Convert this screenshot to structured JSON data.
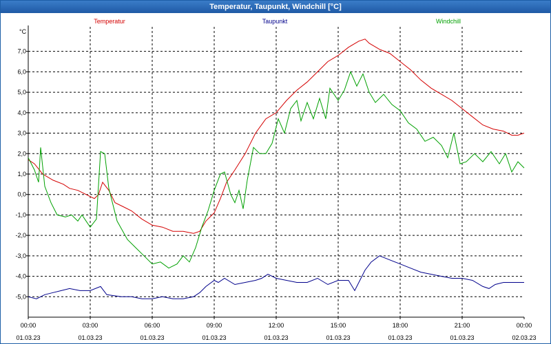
{
  "window": {
    "title": "Temperatur, Taupunkt, Windchill [°C]"
  },
  "chart_data": {
    "type": "line",
    "title": "Temperatur, Taupunkt, Windchill [°C]",
    "ylabel": "°C",
    "xlabel": "",
    "ylim": [
      -6,
      8.2
    ],
    "xlim": [
      0,
      24
    ],
    "grid": true,
    "legend_position": "top",
    "y_ticks": [
      -5,
      -4,
      -3,
      -2,
      -1,
      0,
      1,
      2,
      3,
      4,
      5,
      6,
      7
    ],
    "y_tick_labels": [
      "-5,0",
      "-4,0",
      "-3,0",
      "-2,0",
      "-1,0",
      "0,0",
      "1,0",
      "2,0",
      "3,0",
      "4,0",
      "5,0",
      "6,0",
      "7,0"
    ],
    "x_ticks": [
      {
        "h": 0,
        "time": "00:00",
        "date": "01.03.23"
      },
      {
        "h": 3,
        "time": "03:00",
        "date": "01.03.23"
      },
      {
        "h": 6,
        "time": "06:00",
        "date": "01.03.23"
      },
      {
        "h": 9,
        "time": "09:00",
        "date": "01.03.23"
      },
      {
        "h": 12,
        "time": "12:00",
        "date": "01.03.23"
      },
      {
        "h": 15,
        "time": "15:00",
        "date": "01.03.23"
      },
      {
        "h": 18,
        "time": "18:00",
        "date": "01.03.23"
      },
      {
        "h": 21,
        "time": "21:00",
        "date": "01.03.23"
      },
      {
        "h": 24,
        "time": "00:00",
        "date": "02.03.23"
      }
    ],
    "series": [
      {
        "name": "Temperatur",
        "color": "#d40000",
        "points": [
          [
            0,
            1.7
          ],
          [
            0.3,
            1.5
          ],
          [
            0.7,
            1.0
          ],
          [
            1.2,
            0.7
          ],
          [
            1.7,
            0.5
          ],
          [
            2.0,
            0.3
          ],
          [
            2.4,
            0.2
          ],
          [
            2.8,
            0.0
          ],
          [
            3.0,
            -0.1
          ],
          [
            3.2,
            -0.2
          ],
          [
            3.4,
            0.0
          ],
          [
            3.6,
            0.6
          ],
          [
            3.9,
            0.2
          ],
          [
            4.2,
            -0.4
          ],
          [
            4.6,
            -0.6
          ],
          [
            5.0,
            -0.8
          ],
          [
            5.5,
            -1.2
          ],
          [
            6.0,
            -1.5
          ],
          [
            6.5,
            -1.6
          ],
          [
            7.0,
            -1.8
          ],
          [
            7.5,
            -1.8
          ],
          [
            8.0,
            -1.9
          ],
          [
            8.3,
            -1.8
          ],
          [
            8.6,
            -1.3
          ],
          [
            9.0,
            -0.9
          ],
          [
            9.3,
            -0.2
          ],
          [
            9.6,
            0.6
          ],
          [
            10.0,
            1.2
          ],
          [
            10.5,
            2.0
          ],
          [
            11.0,
            3.0
          ],
          [
            11.5,
            3.7
          ],
          [
            12.0,
            4.0
          ],
          [
            12.5,
            4.6
          ],
          [
            13.0,
            5.1
          ],
          [
            13.5,
            5.5
          ],
          [
            14.0,
            6.0
          ],
          [
            14.5,
            6.5
          ],
          [
            15.0,
            6.8
          ],
          [
            15.5,
            7.2
          ],
          [
            16.0,
            7.5
          ],
          [
            16.3,
            7.6
          ],
          [
            16.5,
            7.4
          ],
          [
            17.0,
            7.1
          ],
          [
            17.5,
            6.9
          ],
          [
            18.0,
            6.5
          ],
          [
            18.5,
            6.1
          ],
          [
            19.0,
            5.6
          ],
          [
            19.5,
            5.2
          ],
          [
            20.0,
            4.9
          ],
          [
            20.5,
            4.6
          ],
          [
            21.0,
            4.2
          ],
          [
            21.5,
            3.8
          ],
          [
            22.0,
            3.4
          ],
          [
            22.5,
            3.2
          ],
          [
            23.0,
            3.1
          ],
          [
            23.4,
            2.9
          ],
          [
            23.7,
            2.9
          ],
          [
            24,
            3.0
          ]
        ]
      },
      {
        "name": "Taupunkt",
        "color": "#00008b",
        "points": [
          [
            0,
            -5.0
          ],
          [
            0.4,
            -5.1
          ],
          [
            0.8,
            -4.9
          ],
          [
            1.2,
            -4.8
          ],
          [
            1.6,
            -4.7
          ],
          [
            2.0,
            -4.6
          ],
          [
            2.5,
            -4.7
          ],
          [
            3.0,
            -4.7
          ],
          [
            3.5,
            -4.5
          ],
          [
            3.8,
            -4.9
          ],
          [
            4.5,
            -5.0
          ],
          [
            5.0,
            -5.0
          ],
          [
            5.5,
            -5.1
          ],
          [
            6.0,
            -5.1
          ],
          [
            6.5,
            -5.0
          ],
          [
            7.0,
            -5.1
          ],
          [
            7.5,
            -5.1
          ],
          [
            8.0,
            -5.0
          ],
          [
            8.3,
            -4.8
          ],
          [
            8.6,
            -4.5
          ],
          [
            9.0,
            -4.2
          ],
          [
            9.2,
            -4.3
          ],
          [
            9.5,
            -4.1
          ],
          [
            10.0,
            -4.4
          ],
          [
            10.5,
            -4.3
          ],
          [
            11.0,
            -4.2
          ],
          [
            11.3,
            -4.1
          ],
          [
            11.6,
            -3.9
          ],
          [
            12.0,
            -4.1
          ],
          [
            12.5,
            -4.2
          ],
          [
            13.0,
            -4.3
          ],
          [
            13.5,
            -4.3
          ],
          [
            14.0,
            -4.1
          ],
          [
            14.5,
            -4.4
          ],
          [
            15.0,
            -4.2
          ],
          [
            15.5,
            -4.2
          ],
          [
            15.8,
            -4.7
          ],
          [
            16.0,
            -4.3
          ],
          [
            16.3,
            -3.7
          ],
          [
            16.6,
            -3.3
          ],
          [
            17.0,
            -3.0
          ],
          [
            17.5,
            -3.2
          ],
          [
            18.0,
            -3.4
          ],
          [
            18.5,
            -3.6
          ],
          [
            19.0,
            -3.8
          ],
          [
            19.5,
            -3.9
          ],
          [
            20.0,
            -4.0
          ],
          [
            20.5,
            -4.1
          ],
          [
            21.0,
            -4.1
          ],
          [
            21.5,
            -4.2
          ],
          [
            22.0,
            -4.5
          ],
          [
            22.3,
            -4.6
          ],
          [
            22.6,
            -4.4
          ],
          [
            23.0,
            -4.3
          ],
          [
            23.5,
            -4.3
          ],
          [
            24,
            -4.3
          ]
        ]
      },
      {
        "name": "Windchill",
        "color": "#00a000",
        "points": [
          [
            0,
            1.8
          ],
          [
            0.3,
            1.2
          ],
          [
            0.5,
            0.6
          ],
          [
            0.6,
            2.3
          ],
          [
            0.8,
            0.4
          ],
          [
            1.1,
            -0.4
          ],
          [
            1.4,
            -1.0
          ],
          [
            1.8,
            -1.1
          ],
          [
            2.1,
            -1.0
          ],
          [
            2.4,
            -1.3
          ],
          [
            2.6,
            -1.0
          ],
          [
            2.8,
            -1.3
          ],
          [
            3.0,
            -1.6
          ],
          [
            3.3,
            -1.2
          ],
          [
            3.5,
            2.1
          ],
          [
            3.7,
            2.0
          ],
          [
            3.9,
            0.3
          ],
          [
            4.3,
            -1.3
          ],
          [
            4.8,
            -2.2
          ],
          [
            5.2,
            -2.6
          ],
          [
            5.6,
            -3.0
          ],
          [
            6.0,
            -3.4
          ],
          [
            6.4,
            -3.3
          ],
          [
            6.8,
            -3.6
          ],
          [
            7.2,
            -3.4
          ],
          [
            7.5,
            -3.0
          ],
          [
            7.8,
            -3.3
          ],
          [
            8.1,
            -2.6
          ],
          [
            8.4,
            -1.6
          ],
          [
            8.7,
            -0.8
          ],
          [
            9.0,
            0.2
          ],
          [
            9.3,
            1.0
          ],
          [
            9.5,
            1.1
          ],
          [
            9.8,
            0.0
          ],
          [
            10.0,
            -0.4
          ],
          [
            10.2,
            0.2
          ],
          [
            10.4,
            -0.7
          ],
          [
            10.6,
            0.7
          ],
          [
            10.9,
            2.3
          ],
          [
            11.2,
            2.0
          ],
          [
            11.5,
            2.0
          ],
          [
            11.8,
            2.5
          ],
          [
            12.1,
            3.7
          ],
          [
            12.4,
            3.0
          ],
          [
            12.7,
            4.2
          ],
          [
            13.0,
            4.6
          ],
          [
            13.2,
            3.6
          ],
          [
            13.5,
            4.5
          ],
          [
            13.8,
            3.7
          ],
          [
            14.1,
            4.7
          ],
          [
            14.4,
            3.7
          ],
          [
            14.6,
            5.2
          ],
          [
            15.0,
            4.6
          ],
          [
            15.3,
            5.1
          ],
          [
            15.6,
            6.0
          ],
          [
            15.9,
            5.3
          ],
          [
            16.2,
            5.9
          ],
          [
            16.5,
            5.0
          ],
          [
            16.8,
            4.5
          ],
          [
            17.2,
            4.9
          ],
          [
            17.6,
            4.4
          ],
          [
            18.0,
            4.1
          ],
          [
            18.4,
            3.5
          ],
          [
            18.8,
            3.2
          ],
          [
            19.2,
            2.6
          ],
          [
            19.6,
            2.8
          ],
          [
            20.0,
            2.4
          ],
          [
            20.3,
            1.8
          ],
          [
            20.6,
            3.0
          ],
          [
            20.9,
            1.5
          ],
          [
            21.2,
            1.6
          ],
          [
            21.6,
            2.0
          ],
          [
            22.0,
            1.6
          ],
          [
            22.4,
            2.1
          ],
          [
            22.8,
            1.5
          ],
          [
            23.1,
            2.0
          ],
          [
            23.4,
            1.1
          ],
          [
            23.7,
            1.6
          ],
          [
            24,
            1.3
          ]
        ]
      }
    ]
  }
}
